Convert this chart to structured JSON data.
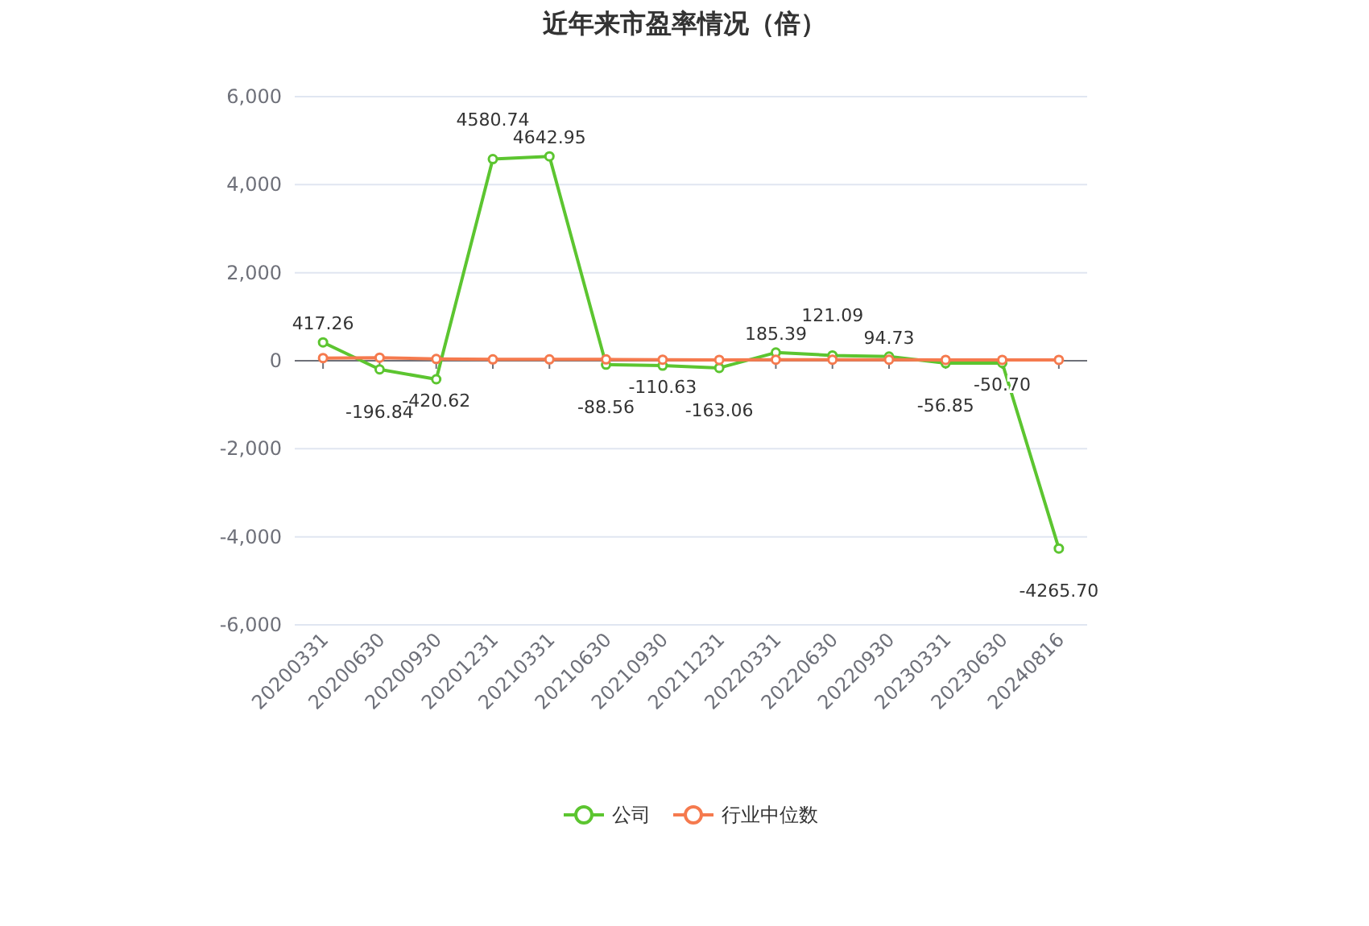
{
  "chart_data": {
    "type": "line",
    "title": "近年来市盈率情况（倍）",
    "categories": [
      "20200331",
      "20200630",
      "20200930",
      "20201231",
      "20210331",
      "20210630",
      "20210930",
      "20211231",
      "20220331",
      "20220630",
      "20220930",
      "20230331",
      "20230630",
      "20240816"
    ],
    "series": [
      {
        "name": "公司",
        "color": "#5cc530",
        "values": [
          417.26,
          -196.84,
          -420.62,
          4580.74,
          4642.95,
          -88.56,
          -110.63,
          -163.06,
          185.39,
          121.09,
          94.73,
          -56.85,
          -50.7,
          -4265.7
        ],
        "value_labels": [
          "417.26",
          "-196.84",
          "-420.62",
          "4580.74",
          "4642.95",
          "-88.56",
          "-110.63",
          "-163.06",
          "185.39",
          "121.09",
          "94.73",
          "-56.85",
          "-50.70",
          "-4265.70"
        ]
      },
      {
        "name": "行业中位数",
        "color": "#f57a4e",
        "values": [
          60,
          70,
          40,
          30,
          30,
          30,
          25,
          20,
          25,
          25,
          25,
          20,
          20,
          20
        ]
      }
    ],
    "ylim": [
      -6000,
      6000
    ],
    "yticks": [
      {
        "value": -6000,
        "label": "-6,000"
      },
      {
        "value": -4000,
        "label": "-4,000"
      },
      {
        "value": -2000,
        "label": "-2,000"
      },
      0,
      {
        "value": 2000,
        "label": "2,000"
      },
      {
        "value": 4000,
        "label": "4,000"
      },
      {
        "value": 6000,
        "label": "6,000"
      }
    ],
    "grid": "y",
    "legend": "bottom",
    "marker": "circle",
    "line_style": "solid"
  }
}
